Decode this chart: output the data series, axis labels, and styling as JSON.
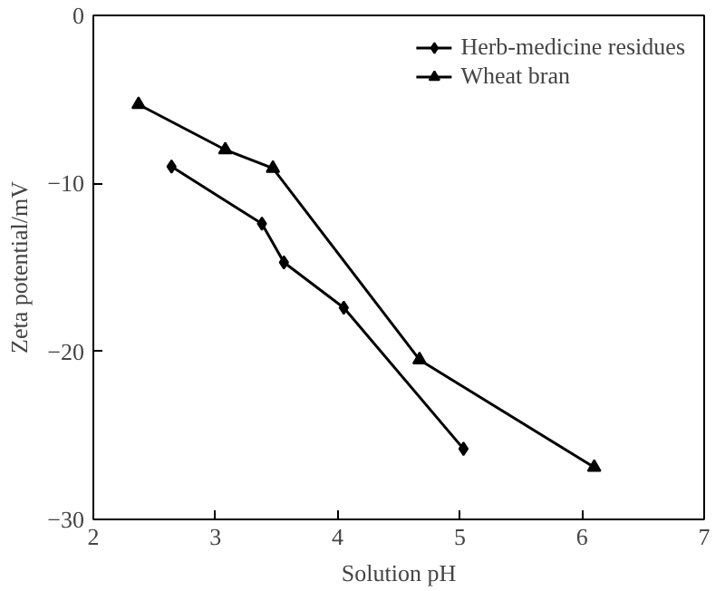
{
  "chart_data": {
    "type": "line",
    "xlabel": "Solution pH",
    "ylabel": "Zeta potential/mV",
    "xlim": [
      2,
      7
    ],
    "ylim": [
      -30,
      0
    ],
    "xticks": [
      2,
      3,
      4,
      5,
      6,
      7
    ],
    "yticks": [
      -30,
      -20,
      -10,
      0
    ],
    "grid": false,
    "legend": "top right",
    "line_style": "solid",
    "series": [
      {
        "name": "Herb-medicine residues",
        "color": "#000000",
        "marker": "diamond",
        "x": [
          2.64,
          3.38,
          3.56,
          4.05,
          5.03
        ],
        "values": [
          -9.0,
          -12.4,
          -14.7,
          -17.4,
          -25.8
        ]
      },
      {
        "name": "Wheat bran",
        "color": "#000000",
        "marker": "triangle",
        "x": [
          2.37,
          3.08,
          3.47,
          4.67,
          6.1
        ],
        "values": [
          -5.3,
          -8.0,
          -9.1,
          -20.5,
          -26.9
        ]
      }
    ]
  }
}
